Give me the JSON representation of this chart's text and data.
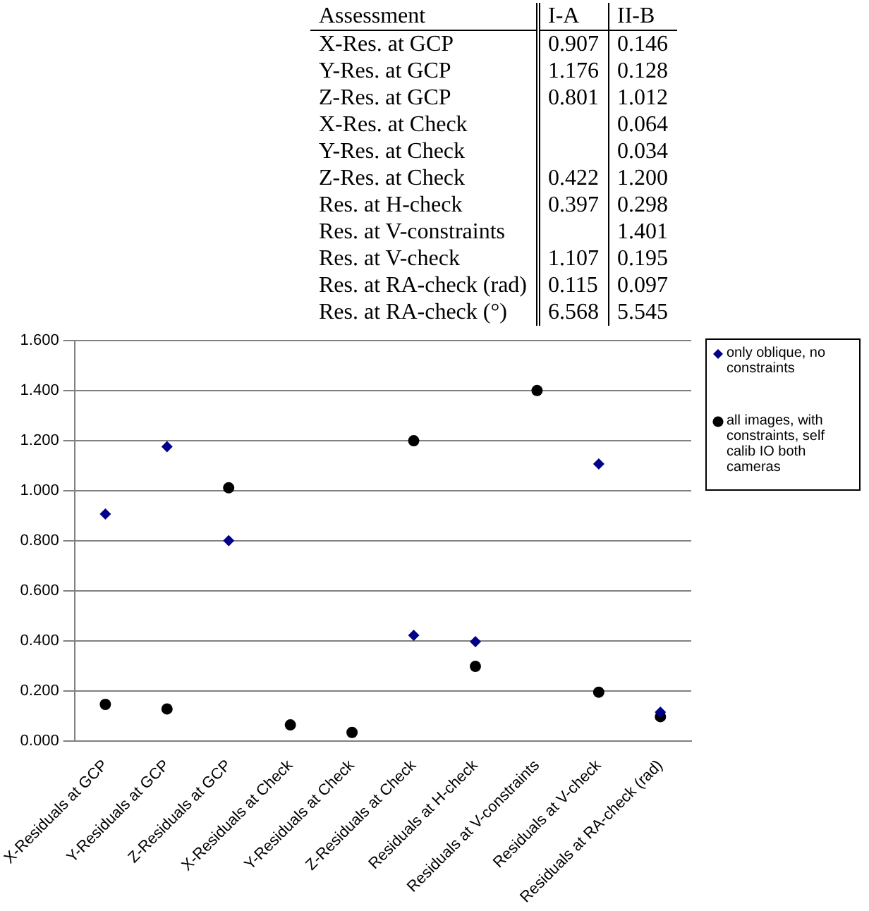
{
  "chart_data": [
    {
      "type": "other",
      "xlabel": "Assessment",
      "categories": [
        "X-Res. at GCP",
        "Y-Res. at GCP",
        "Z-Res. at GCP",
        "X-Res. at Check",
        "Y-Res. at Check",
        "Z-Res. at Check",
        "Res. at H-check",
        "Res. at V-constraints",
        "Res. at V-check",
        "Res. at RA-check (rad)",
        "Res. at RA-check (°)"
      ],
      "series": [
        {
          "name": "I-A",
          "values": [
            0.907,
            1.176,
            0.801,
            null,
            null,
            0.422,
            0.397,
            null,
            1.107,
            0.115,
            6.568
          ],
          "value_labels": [
            "0.907",
            "1.176",
            "0.801",
            null,
            null,
            "0.422",
            "0.397",
            null,
            "1.107",
            "0.115",
            "6.568"
          ]
        },
        {
          "name": "II-B",
          "values": [
            0.146,
            0.128,
            1.012,
            0.064,
            0.034,
            1.2,
            0.298,
            1.401,
            0.195,
            0.097,
            5.545
          ],
          "value_labels": [
            "0.146",
            "0.128",
            "1.012",
            "0.064",
            "0.034",
            "1.200",
            "0.298",
            "1.401",
            "0.195",
            "0.097",
            "5.545"
          ]
        }
      ]
    },
    {
      "type": "scatter",
      "categories": [
        "X-Residuals at GCP",
        "Y-Residuals at GCP",
        "Z-Residuals at GCP",
        "X-Residuals at Check",
        "Y-Residuals at Check",
        "Z-Residuals at Check",
        "Residuals at H-check",
        "Residuals at V-constraints",
        "Residuals at V-check",
        "Residuals at RA-check (rad)"
      ],
      "ylim": [
        0,
        1.6
      ],
      "yticks": [
        {
          "value": 0,
          "label": "0.000"
        },
        {
          "value": 0.2,
          "label": "0.200"
        },
        {
          "value": 0.4,
          "label": "0.400"
        },
        {
          "value": 0.6,
          "label": "0.600"
        },
        {
          "value": 0.8,
          "label": "0.800"
        },
        {
          "value": 1.0,
          "label": "1.000"
        },
        {
          "value": 1.2,
          "label": "1.200"
        },
        {
          "value": 1.4,
          "label": "1.400"
        },
        {
          "value": 1.6,
          "label": "1.600"
        }
      ],
      "grid": "y",
      "legend": "right",
      "series": [
        {
          "name": "only oblique, no constraints",
          "color": "#00008b",
          "marker": "diamond",
          "values": [
            0.907,
            1.176,
            0.801,
            null,
            null,
            0.422,
            0.397,
            null,
            1.107,
            0.115
          ]
        },
        {
          "name": "all images, with constraints, self calib IO both cameras",
          "color": "#000000",
          "marker": "circle",
          "values": [
            0.146,
            0.128,
            1.012,
            0.064,
            0.034,
            1.2,
            0.298,
            1.401,
            0.195,
            0.097
          ]
        }
      ]
    }
  ]
}
